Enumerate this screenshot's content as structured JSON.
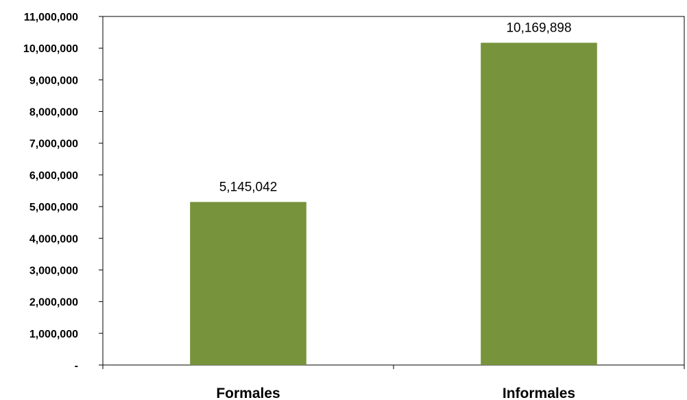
{
  "chart_data": {
    "type": "bar",
    "categories": [
      "Formales",
      "Informales"
    ],
    "values": [
      5145042,
      10169898
    ],
    "data_labels": [
      "5,145,042",
      "10,169,898"
    ],
    "ylim": [
      0,
      11000000
    ],
    "yticks": [
      0,
      1000000,
      2000000,
      3000000,
      4000000,
      5000000,
      6000000,
      7000000,
      8000000,
      9000000,
      10000000,
      11000000
    ],
    "ytick_labels": [
      "-",
      "1,000,000",
      "2,000,000",
      "3,000,000",
      "4,000,000",
      "5,000,000",
      "6,000,000",
      "7,000,000",
      "8,000,000",
      "9,000,000",
      "10,000,000",
      "11,000,000"
    ],
    "bar_color": "#77933C",
    "grid": false,
    "legend": "none",
    "title": "",
    "xlabel": "",
    "ylabel": ""
  }
}
